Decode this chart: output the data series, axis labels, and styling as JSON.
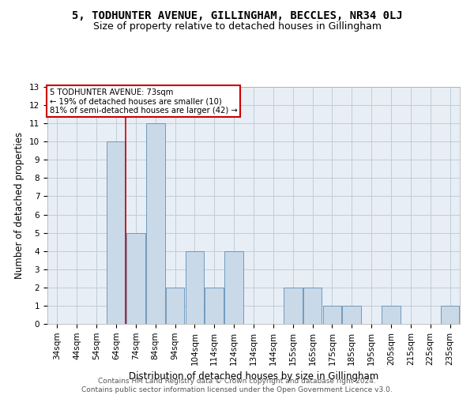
{
  "title": "5, TODHUNTER AVENUE, GILLINGHAM, BECCLES, NR34 0LJ",
  "subtitle": "Size of property relative to detached houses in Gillingham",
  "xlabel": "Distribution of detached houses by size in Gillingham",
  "ylabel": "Number of detached properties",
  "categories": [
    "34sqm",
    "44sqm",
    "54sqm",
    "64sqm",
    "74sqm",
    "84sqm",
    "94sqm",
    "104sqm",
    "114sqm",
    "124sqm",
    "134sqm",
    "144sqm",
    "155sqm",
    "165sqm",
    "175sqm",
    "185sqm",
    "195sqm",
    "205sqm",
    "215sqm",
    "225sqm",
    "235sqm"
  ],
  "values": [
    0,
    0,
    0,
    10,
    5,
    11,
    2,
    4,
    2,
    4,
    0,
    0,
    2,
    2,
    1,
    1,
    0,
    1,
    0,
    0,
    1
  ],
  "bar_color": "#c9d9e8",
  "bar_edge_color": "#6090b8",
  "vline_x": 3.5,
  "vline_color": "#cc0000",
  "annotation_line1": "5 TODHUNTER AVENUE: 73sqm",
  "annotation_line2": "← 19% of detached houses are smaller (10)",
  "annotation_line3": "81% of semi-detached houses are larger (42) →",
  "annotation_box_color": "#cc0000",
  "ylim": [
    0,
    13
  ],
  "yticks": [
    0,
    1,
    2,
    3,
    4,
    5,
    6,
    7,
    8,
    9,
    10,
    11,
    12,
    13
  ],
  "footer_line1": "Contains HM Land Registry data © Crown copyright and database right 2024.",
  "footer_line2": "Contains public sector information licensed under the Open Government Licence v3.0.",
  "bg_color": "#ffffff",
  "plot_bg_color": "#e8eef5",
  "grid_color": "#c0ccd8",
  "title_fontsize": 10,
  "subtitle_fontsize": 9,
  "axis_label_fontsize": 8.5,
  "tick_fontsize": 7.5,
  "footer_fontsize": 6.5
}
